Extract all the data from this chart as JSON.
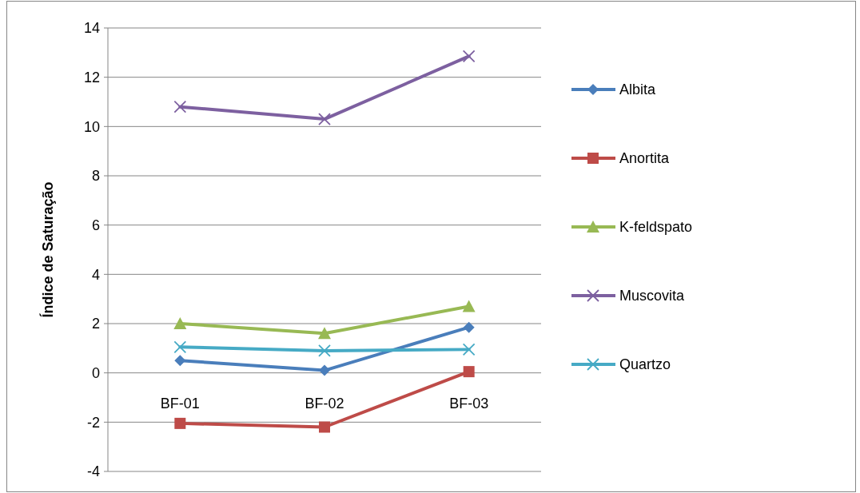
{
  "chart_data": {
    "type": "line",
    "ylabel": "Índice de Saturação",
    "categories": [
      "BF-01",
      "BF-02",
      "BF-03"
    ],
    "ylim": [
      -4,
      14
    ],
    "yticks": [
      -4,
      -2,
      0,
      2,
      4,
      6,
      8,
      10,
      12,
      14
    ],
    "grid": "y",
    "legend": "right",
    "series": [
      {
        "name": "Albita",
        "color": "#4a7ebb",
        "marker": "diamond",
        "values": [
          0.5,
          0.1,
          1.85
        ]
      },
      {
        "name": "Anortita",
        "color": "#be4b48",
        "marker": "square",
        "values": [
          -2.05,
          -2.2,
          0.05
        ]
      },
      {
        "name": "K-feldspato",
        "color": "#98b954",
        "marker": "triangle",
        "values": [
          2.0,
          1.6,
          2.7
        ]
      },
      {
        "name": "Muscovita",
        "color": "#7d60a0",
        "marker": "cross",
        "values": [
          10.8,
          10.3,
          12.85
        ]
      },
      {
        "name": "Quartzo",
        "color": "#46aac5",
        "marker": "cross",
        "values": [
          1.05,
          0.9,
          0.95
        ]
      }
    ]
  }
}
